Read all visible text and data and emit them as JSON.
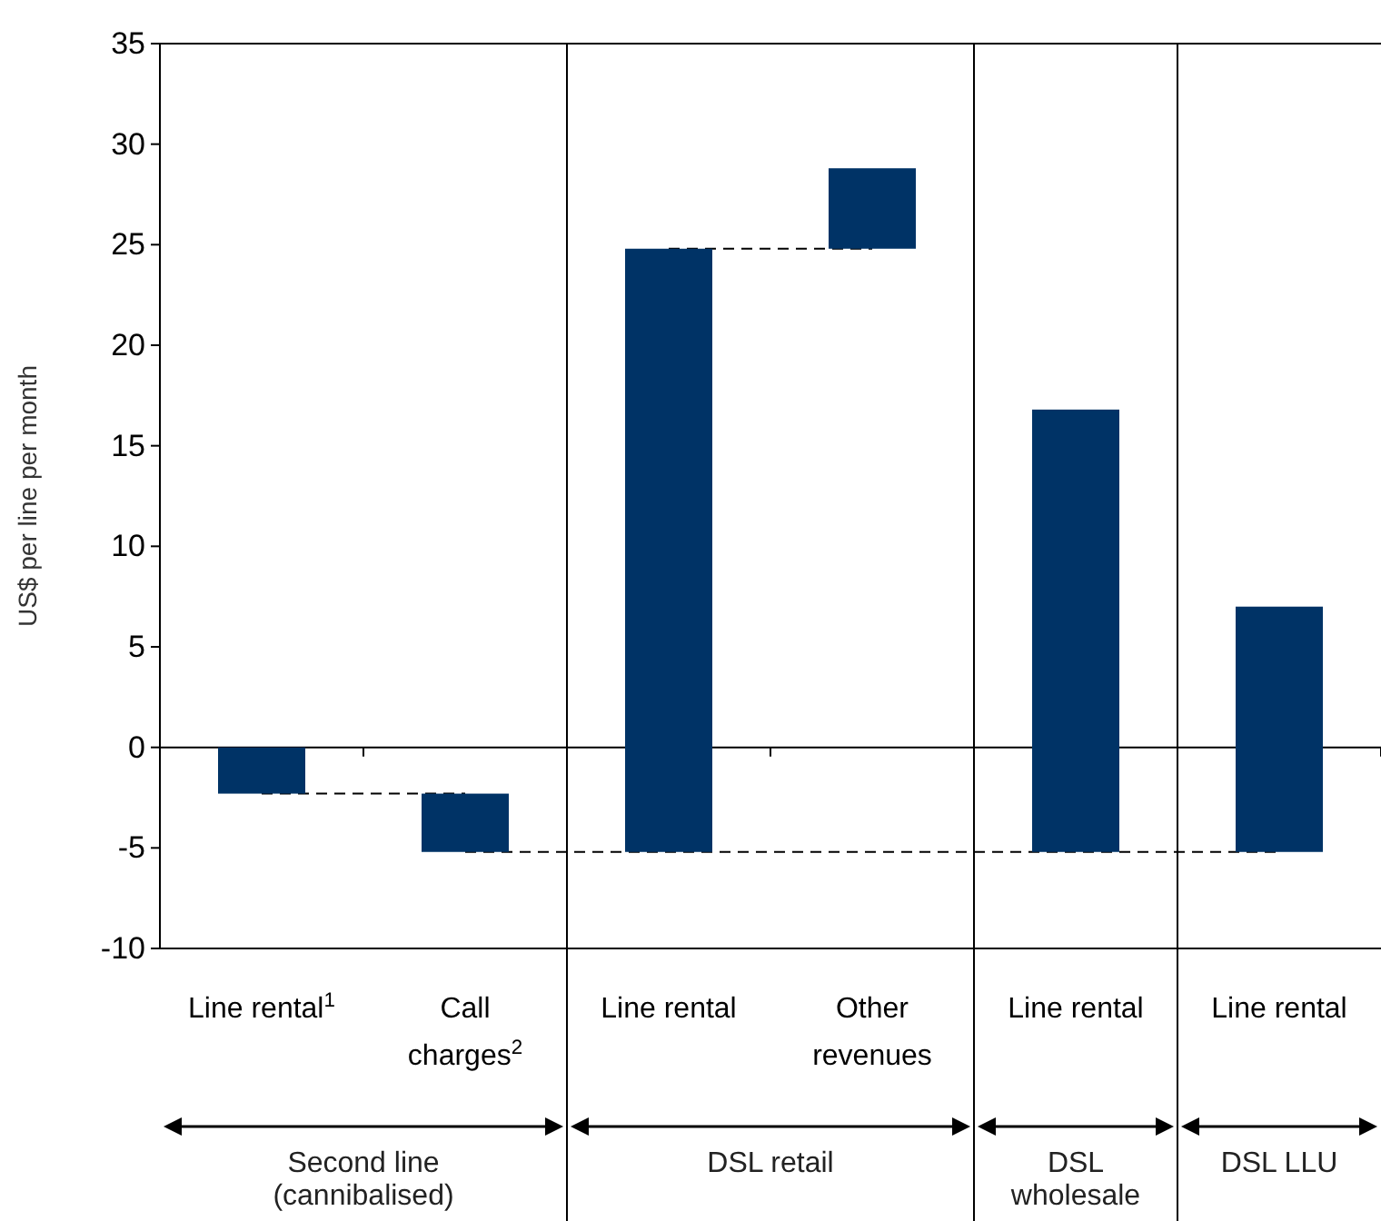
{
  "chart_data": {
    "type": "bar",
    "ylabel": "US$ per line per month",
    "categories": [
      "Line rental$^{1}$",
      "Call charges$^{2}$",
      "Line rental",
      "Other revenues",
      "Line rental",
      "Line rental"
    ],
    "values": [
      -2.3,
      -2.9,
      30.0,
      4.0,
      22.0,
      12.2
    ],
    "base": [
      0,
      -2.3,
      -5.2,
      24.8,
      -5.2,
      -5.2
    ],
    "color": "#003366",
    "ylim": [
      -10,
      35
    ],
    "yticks": [
      -10,
      -5,
      0,
      5,
      10,
      15,
      20,
      25,
      30,
      35
    ],
    "ref_lines": [
      {
        "axis": "y",
        "value": -2.3,
        "line_style": "dashed",
        "color": "#000000"
      },
      {
        "axis": "y",
        "value": -5.2,
        "line_style": "dashed",
        "color": "#000000"
      },
      {
        "axis": "y",
        "value": 24.8,
        "line_style": "dashed",
        "color": "#000000"
      }
    ],
    "annotations": [
      "Second line (cannibalised)",
      "DSL retail",
      "DSL wholesale",
      "DSL LLU"
    ]
  }
}
